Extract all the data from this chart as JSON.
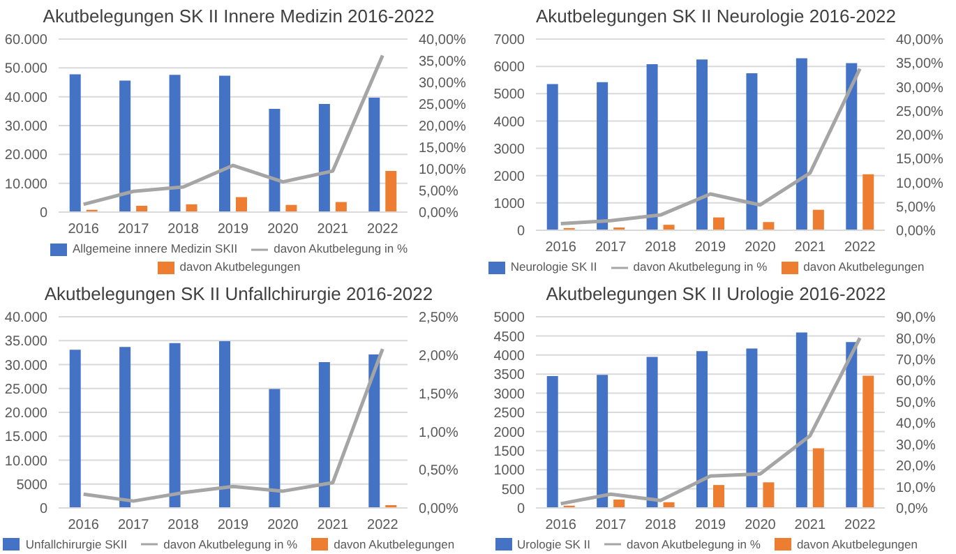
{
  "chart_data": [
    {
      "type": "bar",
      "title": "Akutbelegungen SK II Innere Medizin 2016-2022",
      "categories": [
        "2016",
        "2017",
        "2018",
        "2019",
        "2020",
        "2021",
        "2022"
      ],
      "series": [
        {
          "name": "Allgemeine innere Medizin SKII",
          "color": "#4472c4",
          "values": [
            47800,
            45600,
            47600,
            47300,
            35800,
            37500,
            39700
          ]
        },
        {
          "name": "davon Akutbelegungen",
          "color": "#ed7d31",
          "values": [
            800,
            2200,
            2700,
            5200,
            2500,
            3500,
            14300
          ]
        },
        {
          "name": "davon Akutbelegung in %",
          "type": "line",
          "axis": "y2",
          "color": "#a5a5a5",
          "values": [
            1.8,
            4.8,
            5.8,
            10.8,
            7.0,
            9.5,
            36.2
          ]
        }
      ],
      "ylim": [
        0,
        60000
      ],
      "yticks": [
        0,
        {
          "value": 10000,
          "label": "10.000"
        },
        {
          "value": 20000,
          "label": "20.000"
        },
        {
          "value": 30000,
          "label": "30.000"
        },
        {
          "value": 40000,
          "label": "40.000"
        },
        {
          "value": 50000,
          "label": "50.000"
        },
        {
          "value": 60000,
          "label": "60.000"
        }
      ],
      "y2lim": [
        0,
        40
      ],
      "y2ticks": [
        {
          "value": 0,
          "label": "0,00%"
        },
        {
          "value": 5,
          "label": "5,00%"
        },
        {
          "value": 10,
          "label": "10,00%"
        },
        {
          "value": 15,
          "label": "15,00%"
        },
        {
          "value": 20,
          "label": "20,00%"
        },
        {
          "value": 25,
          "label": "25,00%"
        },
        {
          "value": 30,
          "label": "30,00%"
        },
        {
          "value": 35,
          "label": "35,00%"
        },
        {
          "value": 40,
          "label": "40,00%"
        }
      ],
      "grid": "y",
      "legend": "bottom"
    },
    {
      "type": "bar",
      "title": "Akutbelegungen SK II Neurologie 2016-2022",
      "categories": [
        "2016",
        "2017",
        "2018",
        "2019",
        "2020",
        "2021",
        "2022"
      ],
      "series": [
        {
          "name": "Neurologie SK II",
          "color": "#4472c4",
          "values": [
            5350,
            5420,
            6080,
            6250,
            5750,
            6300,
            6120
          ]
        },
        {
          "name": "davon Akutbelegungen",
          "color": "#ed7d31",
          "values": [
            80,
            100,
            200,
            470,
            300,
            750,
            2050
          ]
        },
        {
          "name": "davon Akutbelegung in %",
          "type": "line",
          "axis": "y2",
          "color": "#a5a5a5",
          "values": [
            1.4,
            2.0,
            3.2,
            7.6,
            5.3,
            12.0,
            33.8
          ]
        }
      ],
      "ylim": [
        0,
        7000
      ],
      "yticks": [
        0,
        1000,
        2000,
        3000,
        4000,
        5000,
        6000,
        7000
      ],
      "y2lim": [
        0,
        40
      ],
      "y2ticks": [
        {
          "value": 0,
          "label": "0,00%"
        },
        {
          "value": 5,
          "label": "5,00%"
        },
        {
          "value": 10,
          "label": "10,00%"
        },
        {
          "value": 15,
          "label": "15,00%"
        },
        {
          "value": 20,
          "label": "20,00%"
        },
        {
          "value": 25,
          "label": "25,00%"
        },
        {
          "value": 30,
          "label": "30,00%"
        },
        {
          "value": 35,
          "label": "35,00%"
        },
        {
          "value": 40,
          "label": "40,00%"
        }
      ],
      "grid": "y",
      "legend": "bottom"
    },
    {
      "type": "bar",
      "title": "Akutbelegungen SK II Unfallchirurgie 2016-2022",
      "categories": [
        "2016",
        "2017",
        "2018",
        "2019",
        "2020",
        "2021",
        "2022"
      ],
      "series": [
        {
          "name": "Unfallchirurgie SKII",
          "color": "#4472c4",
          "values": [
            33100,
            33700,
            34500,
            34900,
            24900,
            30500,
            32100
          ]
        },
        {
          "name": "davon Akutbelegungen",
          "color": "#ed7d31",
          "values": [
            0,
            0,
            0,
            0,
            0,
            0,
            600
          ]
        },
        {
          "name": "davon Akutbelegung in %",
          "type": "line",
          "axis": "y2",
          "color": "#a5a5a5",
          "values": [
            0.18,
            0.09,
            0.2,
            0.28,
            0.22,
            0.33,
            2.08
          ]
        }
      ],
      "ylim": [
        0,
        40000
      ],
      "yticks": [
        0,
        5000,
        {
          "value": 10000,
          "label": "10.000"
        },
        {
          "value": 15000,
          "label": "15.000"
        },
        {
          "value": 20000,
          "label": "20.000"
        },
        {
          "value": 25000,
          "label": "25.000"
        },
        {
          "value": 30000,
          "label": "30.000"
        },
        {
          "value": 35000,
          "label": "35.000"
        },
        {
          "value": 40000,
          "label": "40.000"
        }
      ],
      "y2lim": [
        0,
        2.5
      ],
      "y2ticks": [
        {
          "value": 0,
          "label": "0,00%"
        },
        {
          "value": 0.5,
          "label": "0,50%"
        },
        {
          "value": 1,
          "label": "1,00%"
        },
        {
          "value": 1.5,
          "label": "1,50%"
        },
        {
          "value": 2,
          "label": "2,00%"
        },
        {
          "value": 2.5,
          "label": "2,50%"
        }
      ],
      "grid": "y",
      "legend": "bottom"
    },
    {
      "type": "bar",
      "title": "Akutbelegungen SK II Urologie 2016-2022",
      "categories": [
        "2016",
        "2017",
        "2018",
        "2019",
        "2020",
        "2021",
        "2022"
      ],
      "series": [
        {
          "name": "Urologie SK II",
          "color": "#4472c4",
          "values": [
            3450,
            3480,
            3950,
            4100,
            4170,
            4590,
            4340
          ]
        },
        {
          "name": "davon Akutbelegungen",
          "color": "#ed7d31",
          "values": [
            60,
            220,
            150,
            600,
            670,
            1560,
            3460
          ]
        },
        {
          "name": "davon Akutbelegung in %",
          "type": "line",
          "axis": "y2",
          "color": "#a5a5a5",
          "values": [
            2.0,
            6.5,
            3.5,
            15.0,
            16.0,
            34.0,
            80.0
          ]
        }
      ],
      "ylim": [
        0,
        5000
      ],
      "yticks": [
        0,
        500,
        1000,
        1500,
        2000,
        2500,
        3000,
        3500,
        4000,
        4500,
        5000
      ],
      "y2lim": [
        0,
        90
      ],
      "y2ticks": [
        {
          "value": 0,
          "label": "0,0%"
        },
        {
          "value": 10,
          "label": "10,0%"
        },
        {
          "value": 20,
          "label": "20,0%"
        },
        {
          "value": 30,
          "label": "30,0%"
        },
        {
          "value": 40,
          "label": "40,0%"
        },
        {
          "value": 50,
          "label": "50,0%"
        },
        {
          "value": 60,
          "label": "60,0%"
        },
        {
          "value": 70,
          "label": "70,0%"
        },
        {
          "value": 80,
          "label": "80,0%"
        },
        {
          "value": 90,
          "label": "90,0%"
        }
      ],
      "grid": "y",
      "legend": "bottom"
    }
  ]
}
